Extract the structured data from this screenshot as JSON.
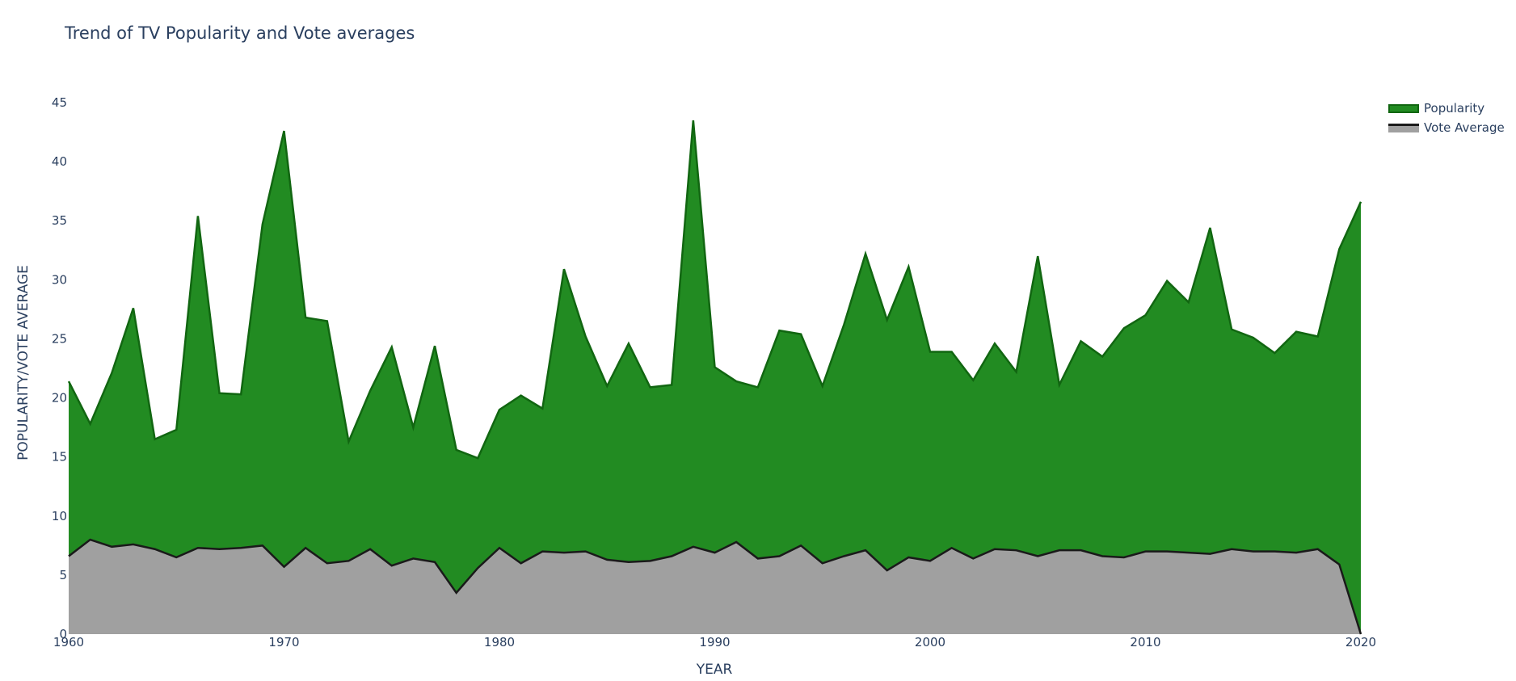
{
  "chart_data": {
    "type": "area",
    "title": "Trend of TV Popularity and Vote averages",
    "xlabel": "YEAR",
    "ylabel": "POPULARITY/VOTE AVERAGE",
    "xlim": [
      1960,
      2020
    ],
    "ylim": [
      0,
      45
    ],
    "x_ticks": [
      1960,
      1970,
      1980,
      1990,
      2000,
      2010,
      2020
    ],
    "y_ticks": [
      0,
      5,
      10,
      15,
      20,
      25,
      30,
      35,
      40,
      45
    ],
    "stacked": true,
    "legend_position": "top-right",
    "x": [
      1960,
      1961,
      1962,
      1963,
      1964,
      1965,
      1966,
      1967,
      1968,
      1969,
      1970,
      1971,
      1972,
      1973,
      1974,
      1975,
      1976,
      1977,
      1978,
      1979,
      1980,
      1981,
      1982,
      1983,
      1984,
      1985,
      1986,
      1987,
      1988,
      1989,
      1990,
      1991,
      1992,
      1993,
      1994,
      1995,
      1996,
      1997,
      1998,
      1999,
      2000,
      2001,
      2002,
      2003,
      2004,
      2005,
      2006,
      2007,
      2008,
      2009,
      2010,
      2011,
      2012,
      2013,
      2014,
      2015,
      2016,
      2017,
      2018,
      2019,
      2020
    ],
    "series": [
      {
        "name": "Vote Average",
        "fill_color": "#a0a0a0",
        "line_color": "#1a1a1a",
        "values": [
          6.6,
          8.0,
          7.4,
          7.6,
          7.2,
          6.5,
          7.3,
          7.2,
          7.3,
          7.5,
          5.7,
          7.3,
          6.0,
          6.2,
          7.2,
          5.8,
          6.4,
          6.1,
          3.5,
          5.6,
          7.3,
          6.0,
          7.0,
          6.9,
          7.0,
          6.3,
          6.1,
          6.2,
          6.6,
          7.4,
          6.9,
          7.8,
          6.4,
          6.6,
          7.5,
          6.0,
          6.6,
          7.1,
          5.4,
          6.5,
          6.2,
          7.3,
          6.4,
          7.2,
          7.1,
          6.6,
          7.1,
          7.1,
          6.6,
          6.5,
          7.0,
          7.0,
          6.9,
          6.8,
          7.2,
          7.0,
          7.0,
          6.9,
          7.2,
          5.9,
          0.0
        ]
      },
      {
        "name": "Popularity",
        "fill_color": "#228b22",
        "line_color": "#116611",
        "values": [
          14.8,
          9.8,
          14.7,
          20.0,
          9.3,
          10.8,
          28.1,
          13.2,
          13.0,
          27.2,
          36.9,
          19.5,
          20.5,
          10.1,
          13.4,
          18.5,
          11.1,
          18.3,
          12.1,
          9.3,
          11.7,
          14.2,
          12.1,
          24.0,
          18.2,
          14.7,
          18.5,
          14.7,
          14.5,
          36.1,
          15.7,
          13.6,
          14.5,
          19.1,
          17.9,
          15.0,
          19.6,
          25.1,
          21.2,
          24.6,
          17.7,
          16.6,
          15.1,
          17.4,
          15.1,
          25.4,
          14.0,
          17.7,
          16.9,
          19.4,
          20.0,
          22.9,
          21.2,
          27.6,
          18.6,
          18.1,
          16.8,
          18.7,
          18.0,
          26.7,
          36.6
        ]
      }
    ]
  }
}
